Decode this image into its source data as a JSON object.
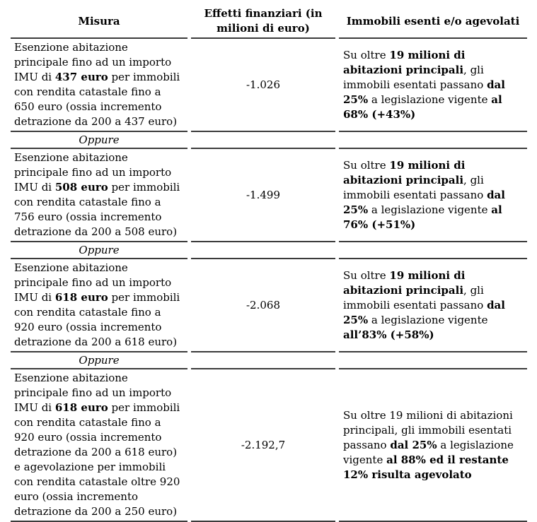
{
  "colors": {
    "background": "#ffffff",
    "text": "#000000",
    "rule": "#3b3b3b"
  },
  "table": {
    "headers": {
      "misura": "Misura",
      "effetti": "Effetti finanziari (in milioni di euro)",
      "immobili": "Immobili esenti e/o agevolati"
    },
    "separator_label": "Oppure",
    "rows": [
      {
        "misura": [
          {
            "t": "Esenzione abitazione principale fino ad un importo IMU di "
          },
          {
            "t": "437 euro",
            "b": true
          },
          {
            "t": " per immobili con rendita catastale fino a 650 euro (ossia incremento detrazione da 200 a 437 euro)"
          }
        ],
        "effetti": "-1.026",
        "immobili": [
          {
            "t": "Su oltre "
          },
          {
            "t": "19 milioni di abitazioni principali",
            "b": true
          },
          {
            "t": ", gli immobili esentati passano "
          },
          {
            "t": "dal 25%",
            "b": true
          },
          {
            "t": " a legislazione vigente "
          },
          {
            "t": "al 68% (+43%)",
            "b": true
          }
        ]
      },
      {
        "misura": [
          {
            "t": "Esenzione abitazione principale fino ad un importo IMU di "
          },
          {
            "t": "508 euro",
            "b": true
          },
          {
            "t": " per immobili con rendita catastale fino a 756 euro (ossia incremento detrazione da 200 a 508 euro)"
          }
        ],
        "effetti": "-1.499",
        "immobili": [
          {
            "t": "Su oltre "
          },
          {
            "t": "19 milioni di abitazioni principali",
            "b": true
          },
          {
            "t": ", gli immobili esentati passano "
          },
          {
            "t": "dal 25%",
            "b": true
          },
          {
            "t": " a legislazione vigente "
          },
          {
            "t": "al 76% (+51%)",
            "b": true
          }
        ]
      },
      {
        "misura": [
          {
            "t": "Esenzione abitazione principale fino ad un importo IMU di "
          },
          {
            "t": "618 euro",
            "b": true
          },
          {
            "t": " per immobili con rendita catastale fino a 920 euro (ossia incremento detrazione da 200 a 618 euro)"
          }
        ],
        "effetti": "-2.068",
        "immobili": [
          {
            "t": "Su oltre "
          },
          {
            "t": "19 milioni di abitazioni principali",
            "b": true
          },
          {
            "t": ", gli immobili esentati passano "
          },
          {
            "t": "dal 25%",
            "b": true
          },
          {
            "t": " a legislazione vigente "
          },
          {
            "t": "all’83% (+58%)",
            "b": true
          }
        ]
      },
      {
        "misura": [
          {
            "t": "Esenzione abitazione principale fino ad un importo IMU di "
          },
          {
            "t": "618 euro",
            "b": true
          },
          {
            "t": " per immobili con rendita catastale fino a 920 euro (ossia incremento detrazione da 200 a 618 euro) e agevolazione per immobili con rendita catastale oltre 920 euro (ossia incremento detrazione da 200 a 250 euro)"
          }
        ],
        "effetti": "-2.192,7",
        "immobili": [
          {
            "t": "Su oltre 19 milioni di abitazioni principali, gli immobili esentati passano "
          },
          {
            "t": "dal 25%",
            "b": true
          },
          {
            "t": " a legislazione vigente "
          },
          {
            "t": "al 88% ed il restante 12% risulta agevolato",
            "b": true
          }
        ]
      }
    ]
  }
}
